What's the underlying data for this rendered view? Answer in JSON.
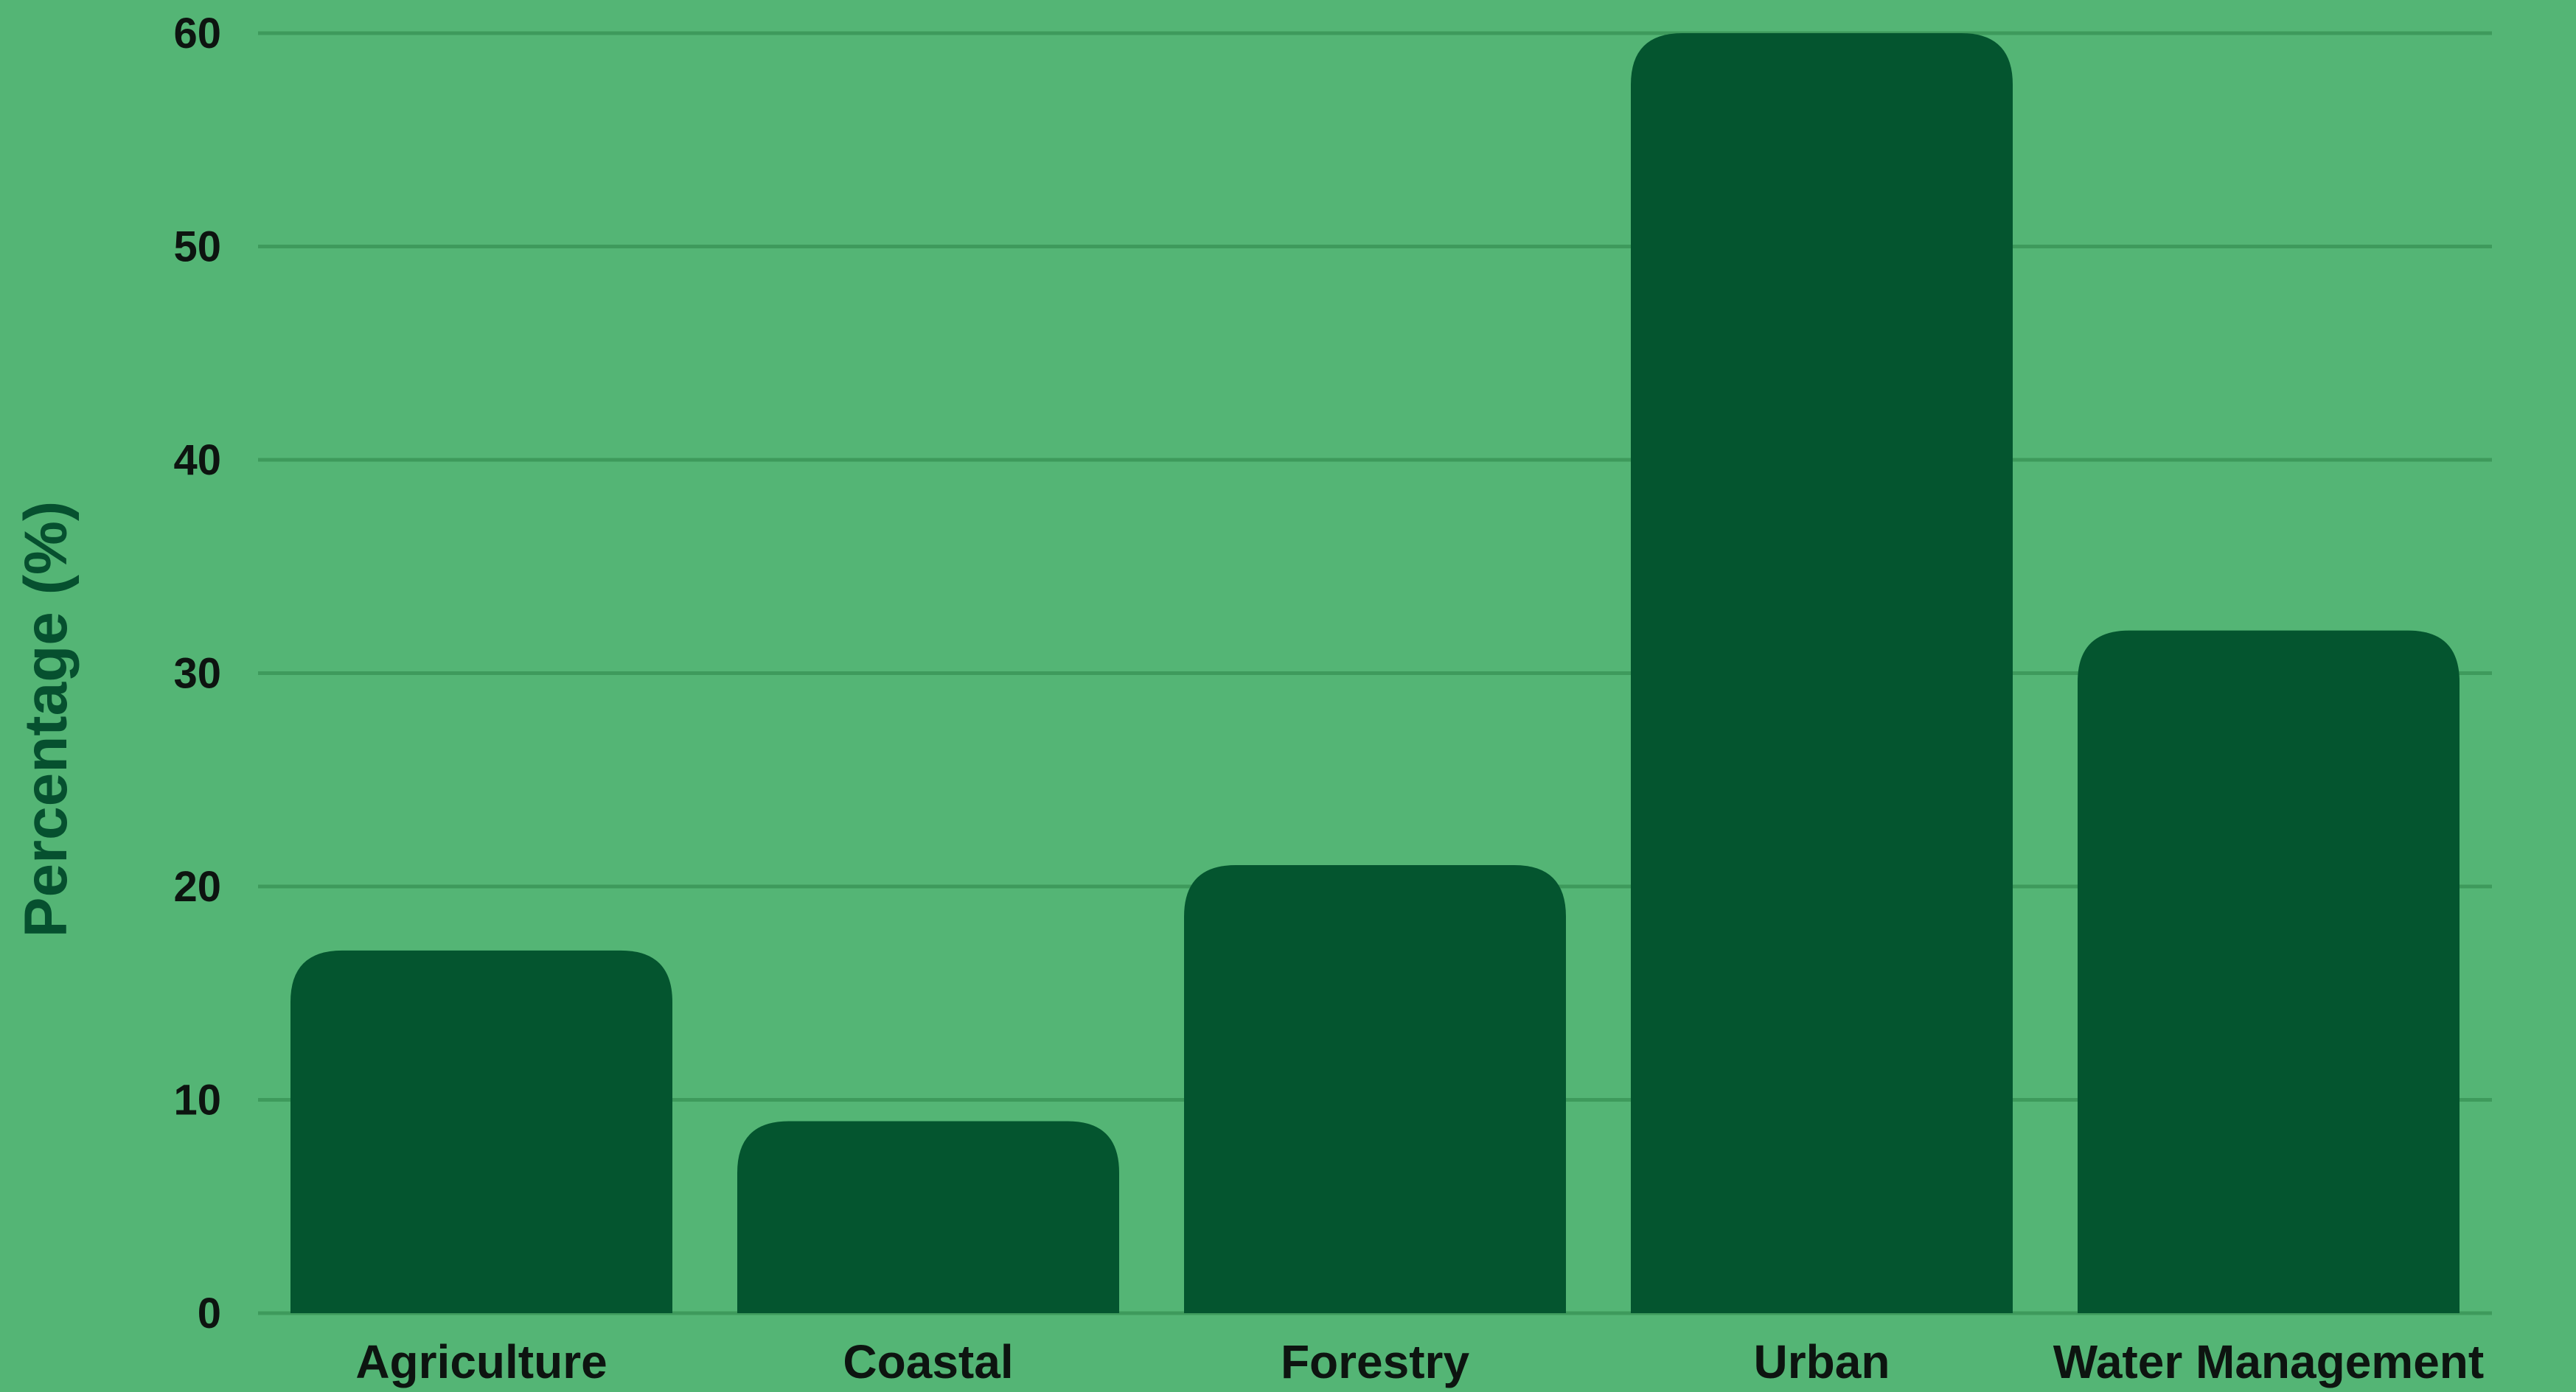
{
  "colors": {
    "background": "#54b575",
    "bar": "#04552f",
    "grid": "#3e9a5c",
    "text": "#0d1410",
    "ylabel": "#06502f"
  },
  "chart_data": {
    "type": "bar",
    "title": "",
    "xlabel": "",
    "ylabel": "Percentage (%)",
    "categories": [
      "Agriculture",
      "Coastal",
      "Forestry",
      "Urban",
      "Water Management"
    ],
    "values": [
      17,
      9,
      21,
      60,
      32
    ],
    "ylim": [
      0,
      60
    ],
    "yticks": [
      0,
      10,
      20,
      30,
      40,
      50,
      60
    ],
    "grid": true,
    "legend": "none"
  }
}
